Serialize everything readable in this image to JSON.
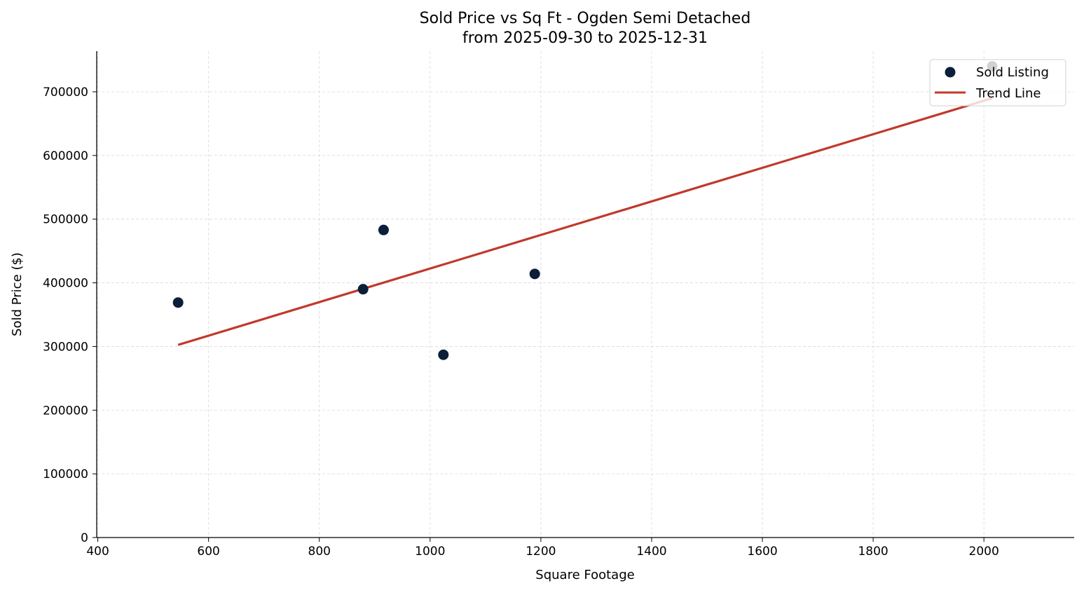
{
  "chart_data": {
    "type": "scatter",
    "title": "Sold Price vs Sq Ft - Ogden Semi Detached",
    "subtitle": "from 2025-09-30 to 2025-12-31",
    "xlabel": "Square Footage",
    "ylabel": "Sold Price ($)",
    "xlim": [
      398,
      2163
    ],
    "ylim": [
      0,
      763800
    ],
    "xticks": [
      400,
      600,
      800,
      1000,
      1200,
      1400,
      1600,
      1800,
      2000
    ],
    "yticks": [
      0,
      100000,
      200000,
      300000,
      400000,
      500000,
      600000,
      700000
    ],
    "grid": true,
    "legend_position": "top-right",
    "series": [
      {
        "name": "Sold Listing",
        "type": "scatter",
        "color": "#0b1f3a",
        "points": [
          {
            "x": 545,
            "y": 369000
          },
          {
            "x": 879,
            "y": 390000
          },
          {
            "x": 916,
            "y": 483000
          },
          {
            "x": 1024,
            "y": 287000
          },
          {
            "x": 1189,
            "y": 414000
          },
          {
            "x": 2015,
            "y": 740000
          }
        ]
      },
      {
        "name": "Trend Line",
        "type": "line",
        "color": "#c0392b",
        "points": [
          {
            "x": 545,
            "y": 302500
          },
          {
            "x": 2015,
            "y": 690000
          }
        ]
      }
    ]
  }
}
